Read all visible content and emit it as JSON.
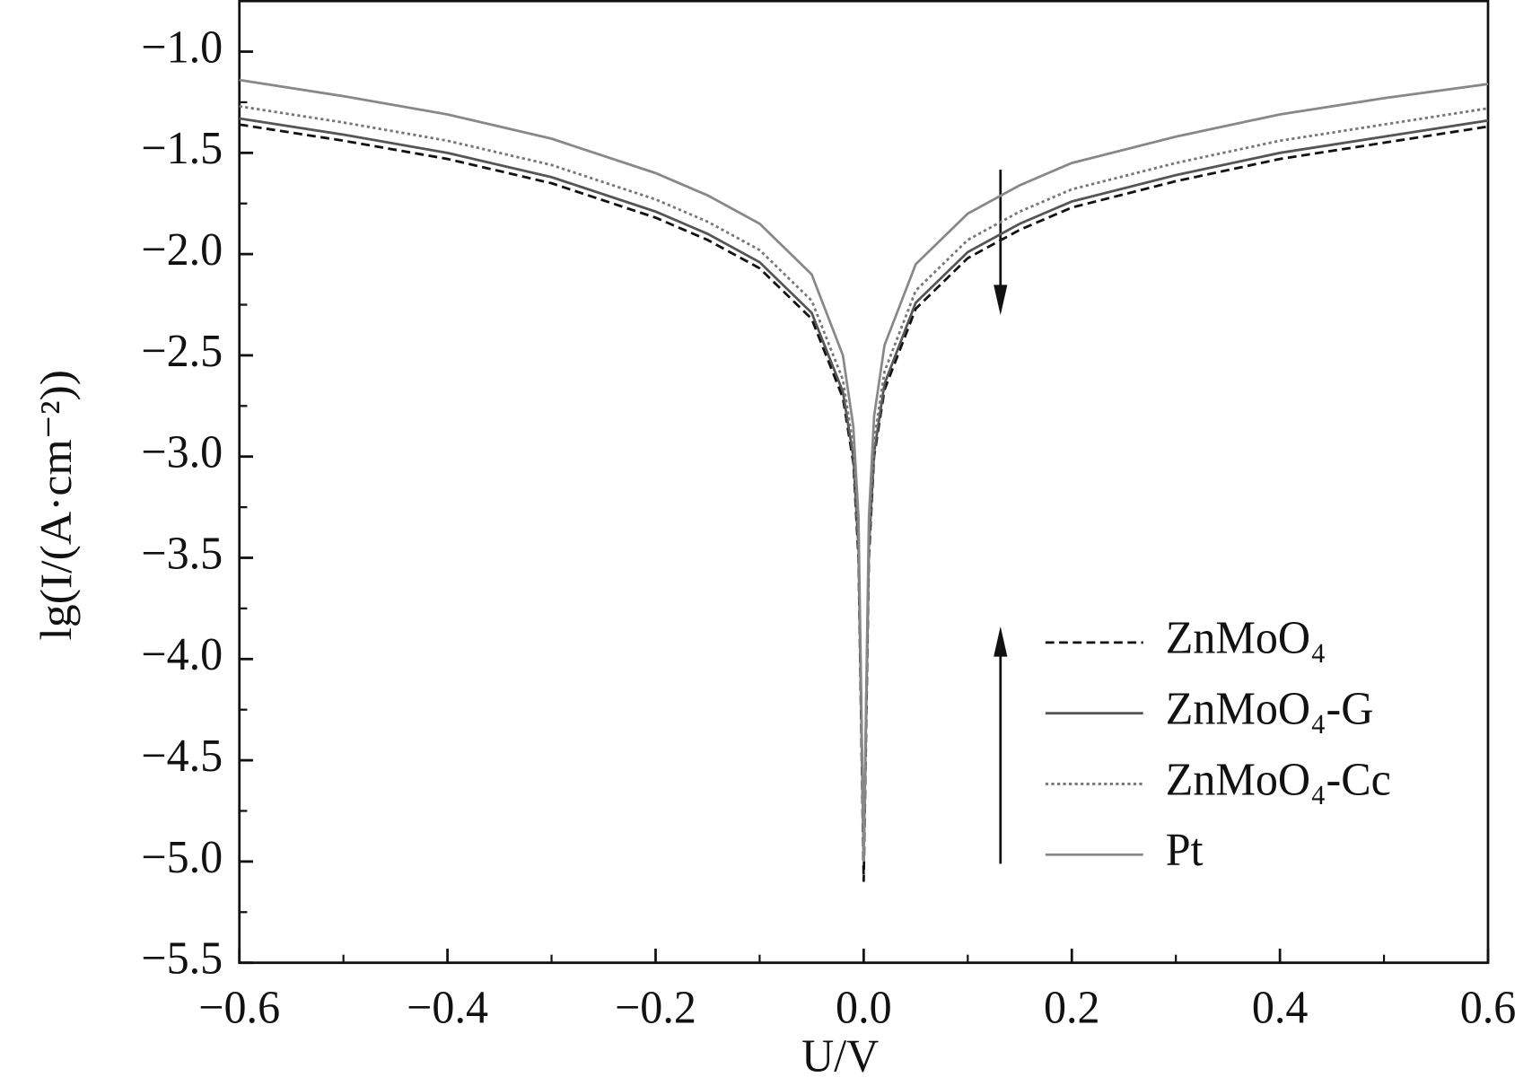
{
  "chart_data": {
    "type": "line",
    "x_label": "U/V",
    "y_label": "lg(I/(A·cm⁻²))",
    "x": [
      -0.6,
      -0.5,
      -0.4,
      -0.3,
      -0.2,
      -0.15,
      -0.1,
      -0.05,
      -0.02,
      -0.01,
      -0.005,
      0,
      0.005,
      0.01,
      0.02,
      0.05,
      0.1,
      0.15,
      0.2,
      0.3,
      0.4,
      0.5,
      0.6
    ],
    "series": [
      {
        "name": "ZnMoO₄",
        "color": "#111111",
        "dash": "dashed",
        "values": [
          -1.36,
          -1.44,
          -1.53,
          -1.65,
          -1.82,
          -1.93,
          -2.07,
          -2.32,
          -2.71,
          -3.03,
          -3.5,
          -5.1,
          -3.5,
          -3.0,
          -2.67,
          -2.27,
          -2.02,
          -1.88,
          -1.77,
          -1.64,
          -1.53,
          -1.45,
          -1.37
        ]
      },
      {
        "name": "ZnMoO₄-G",
        "color": "#555555",
        "dash": "solid",
        "values": [
          -1.33,
          -1.41,
          -1.5,
          -1.62,
          -1.79,
          -1.9,
          -2.04,
          -2.29,
          -2.68,
          -3.0,
          -3.45,
          -5.0,
          -3.45,
          -2.98,
          -2.64,
          -2.24,
          -1.99,
          -1.85,
          -1.74,
          -1.61,
          -1.5,
          -1.42,
          -1.34
        ]
      },
      {
        "name": "ZnMoO₄-Cc",
        "color": "#777777",
        "dash": "dotted",
        "values": [
          -1.27,
          -1.35,
          -1.44,
          -1.56,
          -1.73,
          -1.84,
          -1.98,
          -2.23,
          -2.62,
          -2.95,
          -3.4,
          -5.0,
          -3.4,
          -2.92,
          -2.58,
          -2.18,
          -1.93,
          -1.79,
          -1.68,
          -1.55,
          -1.44,
          -1.36,
          -1.28
        ]
      },
      {
        "name": "Pt",
        "color": "#888888",
        "dash": "solid",
        "values": [
          -1.14,
          -1.22,
          -1.31,
          -1.43,
          -1.6,
          -1.71,
          -1.85,
          -2.1,
          -2.5,
          -2.85,
          -3.3,
          -5.0,
          -3.3,
          -2.8,
          -2.45,
          -2.05,
          -1.8,
          -1.66,
          -1.55,
          -1.42,
          -1.31,
          -1.23,
          -1.16
        ]
      }
    ],
    "xlim": [
      -0.6,
      0.6
    ],
    "ylim": [
      -5.5,
      -0.75
    ],
    "xticks": [
      {
        "value": -0.6,
        "label": "−0.6"
      },
      {
        "value": -0.4,
        "label": "−0.4"
      },
      {
        "value": -0.2,
        "label": "−0.2"
      },
      {
        "value": 0,
        "label": "0.0"
      },
      0.2,
      0.4,
      0.6
    ],
    "yticks": [
      {
        "value": -5.5,
        "label": "−5.5"
      },
      {
        "value": -5.0,
        "label": "−5.0"
      },
      {
        "value": -4.5,
        "label": "−4.5"
      },
      {
        "value": -4.0,
        "label": "−4.0"
      },
      {
        "value": -3.5,
        "label": "−3.5"
      },
      {
        "value": -3.0,
        "label": "−3.0"
      },
      {
        "value": -2.5,
        "label": "−2.5"
      },
      {
        "value": -2.0,
        "label": "−2.0"
      },
      {
        "value": -1.5,
        "label": "−1.5"
      },
      {
        "value": -1.0,
        "label": "−1.0"
      }
    ],
    "xminorticks": [
      -0.5,
      -0.3,
      -0.1,
      0.1,
      0.3,
      0.5
    ],
    "yminorticks": [
      -5.25,
      -4.75,
      -4.25,
      -3.75,
      -3.25,
      -2.75,
      -2.25,
      -1.75,
      -1.25
    ],
    "grid": false,
    "legend": "lower right"
  }
}
